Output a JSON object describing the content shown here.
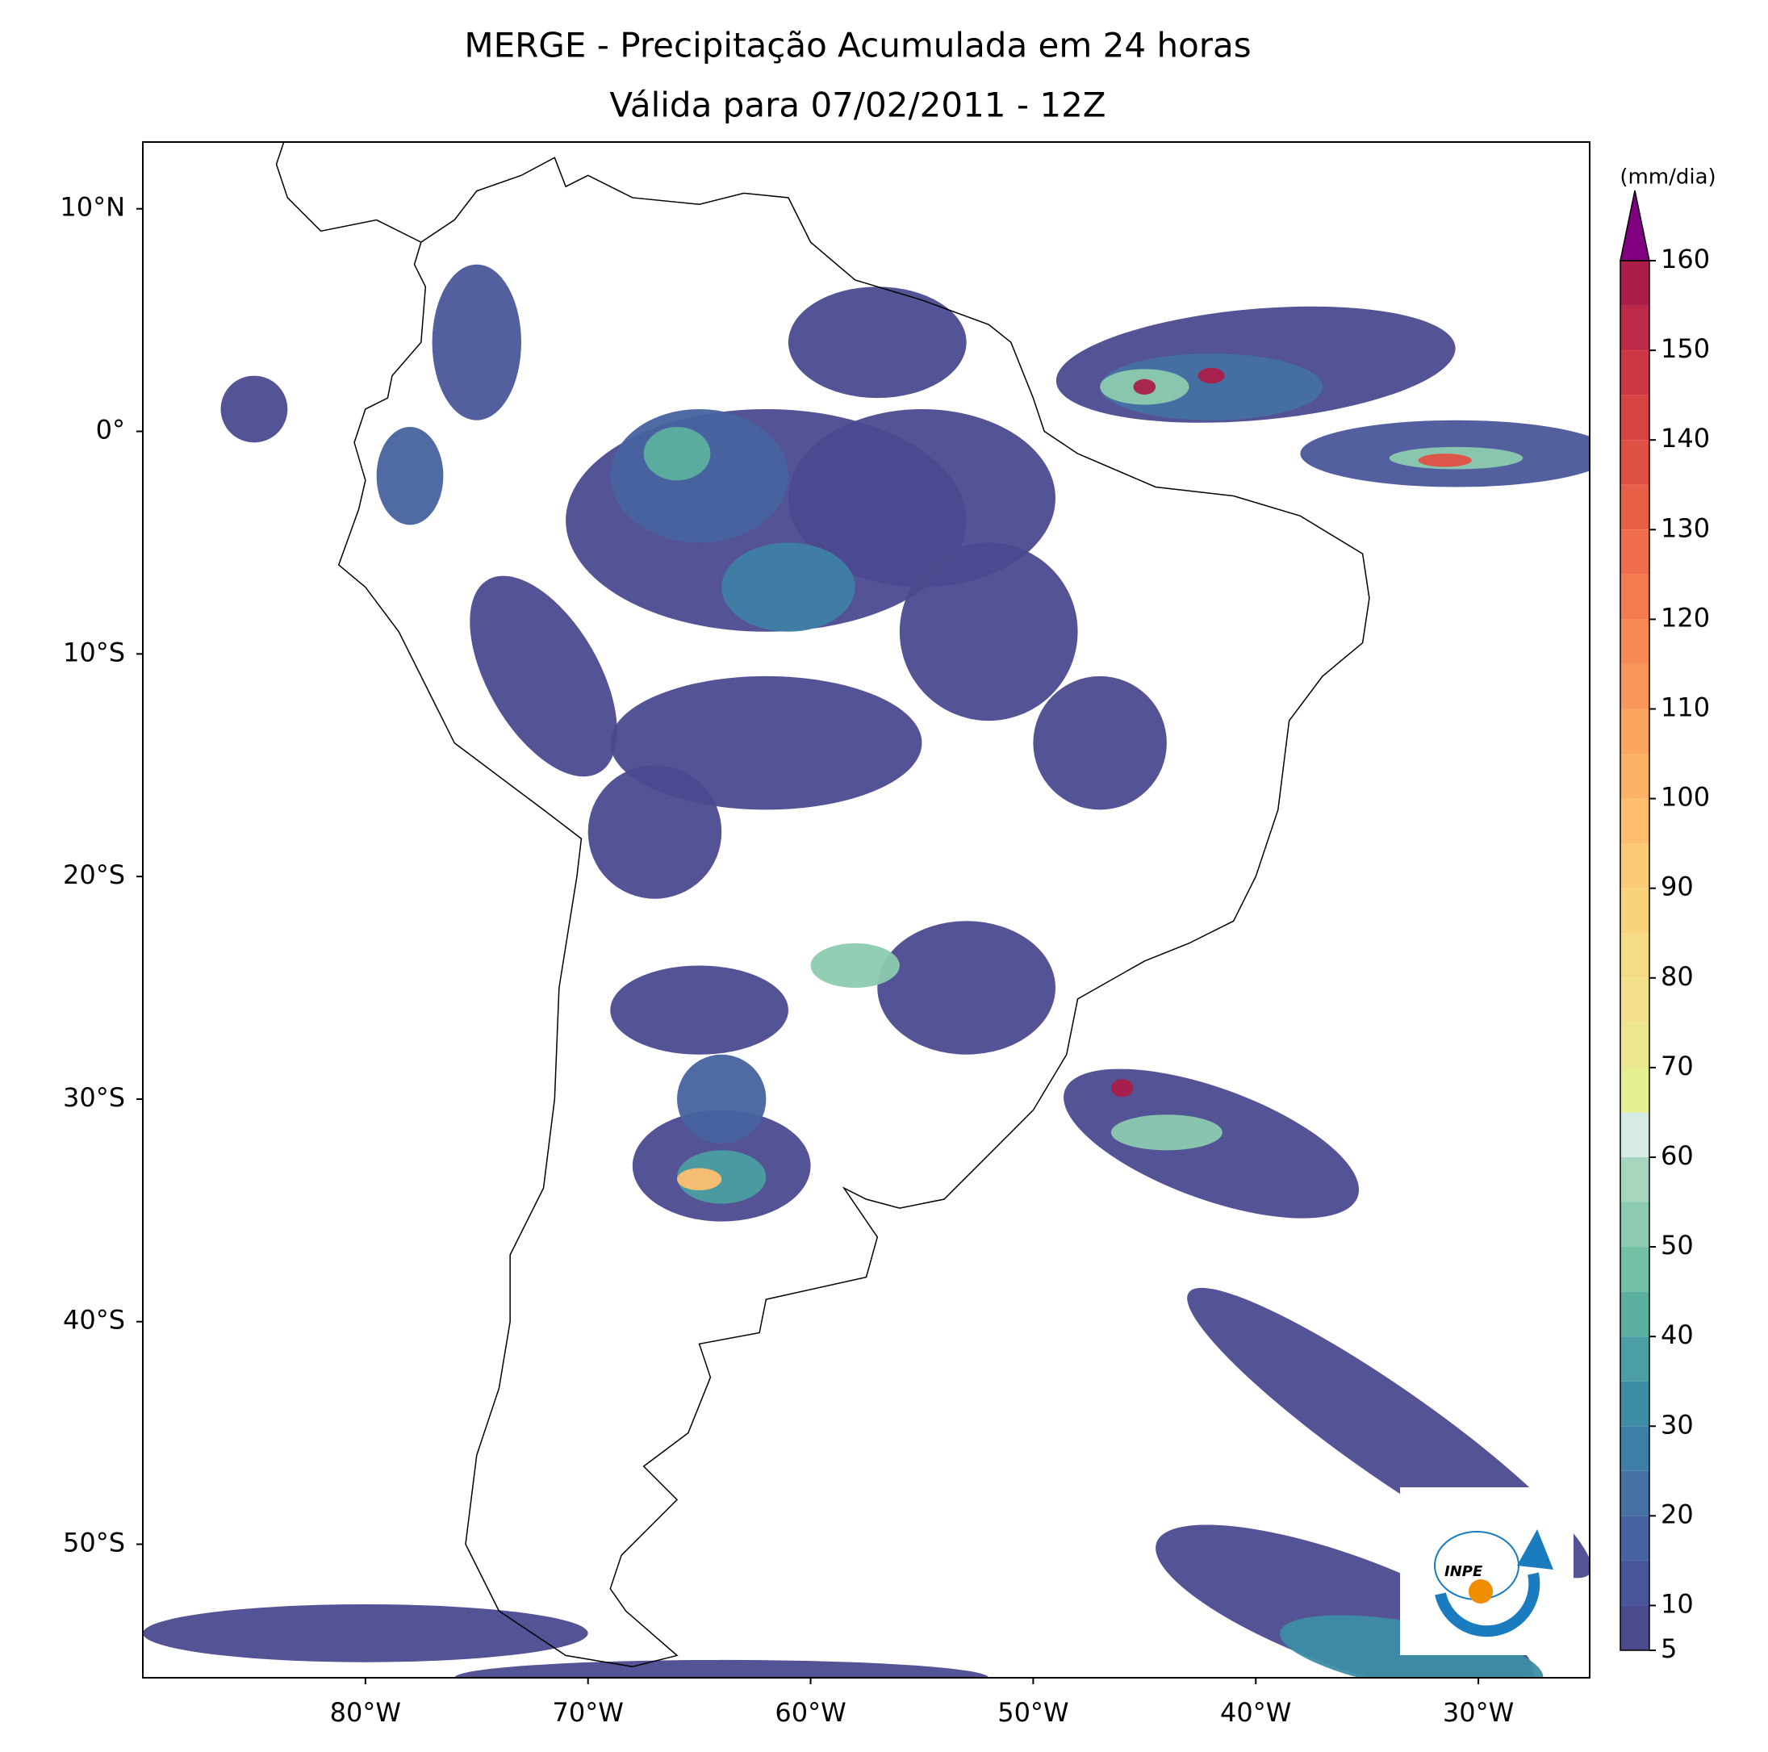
{
  "title": "MERGE - Precipitação Acumulada em 24 horas",
  "subtitle": "Válida para 07/02/2011 - 12Z",
  "map": {
    "lon_range": [
      -90,
      -25
    ],
    "lat_range": [
      -56,
      13
    ],
    "xticks": [
      {
        "value": -80,
        "label": "80°W"
      },
      {
        "value": -70,
        "label": "70°W"
      },
      {
        "value": -60,
        "label": "60°W"
      },
      {
        "value": -50,
        "label": "50°W"
      },
      {
        "value": -40,
        "label": "40°W"
      },
      {
        "value": -30,
        "label": "30°W"
      }
    ],
    "yticks": [
      {
        "value": 10,
        "label": "10°N"
      },
      {
        "value": 0,
        "label": "0°"
      },
      {
        "value": -10,
        "label": "10°S"
      },
      {
        "value": -20,
        "label": "20°S"
      },
      {
        "value": -30,
        "label": "30°S"
      },
      {
        "value": -40,
        "label": "40°S"
      },
      {
        "value": -50,
        "label": "50°S"
      }
    ]
  },
  "colorbar": {
    "label": "(mm/dia)",
    "lim": [
      5,
      160
    ],
    "ticks": [
      5,
      10,
      20,
      30,
      40,
      50,
      60,
      70,
      80,
      90,
      100,
      110,
      120,
      130,
      140,
      150,
      160
    ],
    "levels": [
      5,
      10,
      15,
      20,
      25,
      30,
      35,
      40,
      45,
      50,
      55,
      60,
      65,
      70,
      75,
      80,
      85,
      90,
      95,
      100,
      105,
      110,
      115,
      120,
      125,
      130,
      135,
      140,
      145,
      150,
      155,
      160
    ],
    "colors": [
      "#4b4a8f",
      "#4a569a",
      "#47639f",
      "#4571a3",
      "#3f7fa5",
      "#3d8da4",
      "#4b9ea2",
      "#5cb09f",
      "#73c0a4",
      "#8ccbaf",
      "#a6d7be",
      "#d7ebe5",
      "#e5ef8f",
      "#ece690",
      "#f2e08a",
      "#f6db85",
      "#f9d27c",
      "#fbca76",
      "#fdbf6f",
      "#fcb266",
      "#fba560",
      "#f9975a",
      "#f78954",
      "#f47b4f",
      "#ef6d4a",
      "#e85f47",
      "#e05145",
      "#d74444",
      "#cd3744",
      "#bd2b48",
      "#ab1e4a"
    ],
    "extend_color": "#800080"
  },
  "logo": {
    "text": "INPE"
  }
}
